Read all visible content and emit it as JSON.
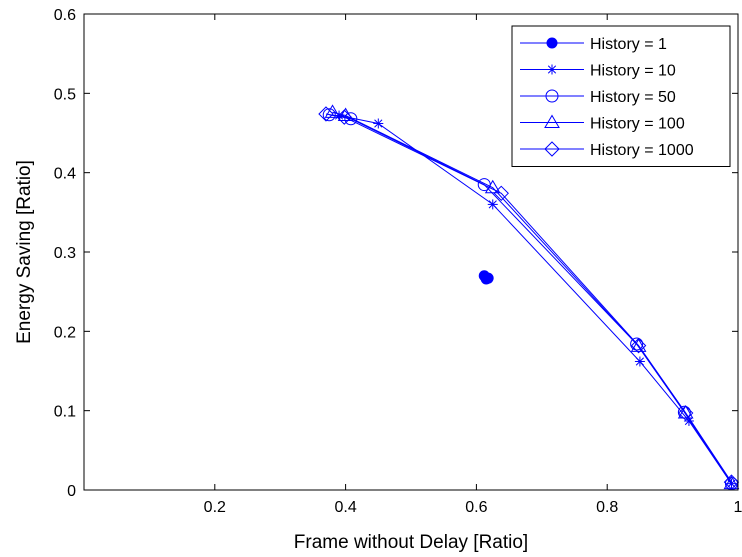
{
  "chart_data": {
    "type": "line",
    "title": "",
    "xlabel": "Frame without Delay [Ratio]",
    "ylabel": "Energy Saving [Ratio]",
    "xlim": [
      0,
      1
    ],
    "ylim": [
      0,
      0.6
    ],
    "xticks": [
      0.2,
      0.4,
      0.6,
      0.8,
      1
    ],
    "xtick_labels": [
      "0.2",
      "0.4",
      "0.6",
      "0.8",
      "1"
    ],
    "yticks": [
      0,
      0.1,
      0.2,
      0.3,
      0.4,
      0.5,
      0.6
    ],
    "ytick_labels": [
      "0",
      "0.1",
      "0.2",
      "0.3",
      "0.4",
      "0.5",
      "0.6"
    ],
    "grid": false,
    "legend_position": "top-right",
    "color": "#0000ff",
    "series": [
      {
        "name": "History = 1",
        "marker": "filled-circle",
        "x": [
          0.612,
          0.615,
          0.618
        ],
        "y": [
          0.27,
          0.266,
          0.267
        ]
      },
      {
        "name": "History = 10",
        "marker": "asterisk",
        "x": [
          0.39,
          0.45,
          0.625,
          0.85,
          0.925,
          0.99
        ],
        "y": [
          0.472,
          0.462,
          0.36,
          0.162,
          0.087,
          0.008
        ]
      },
      {
        "name": "History = 50",
        "marker": "circle",
        "x": [
          0.375,
          0.408,
          0.612,
          0.845,
          0.918,
          0.99
        ],
        "y": [
          0.473,
          0.468,
          0.385,
          0.184,
          0.098,
          0.008
        ]
      },
      {
        "name": "History = 100",
        "marker": "triangle",
        "x": [
          0.38,
          0.4,
          0.625,
          0.848,
          0.92,
          0.99
        ],
        "y": [
          0.476,
          0.472,
          0.381,
          0.181,
          0.097,
          0.008
        ]
      },
      {
        "name": "History = 1000",
        "marker": "diamond",
        "x": [
          0.37,
          0.398,
          0.638,
          0.848,
          0.92,
          0.99
        ],
        "y": [
          0.474,
          0.47,
          0.374,
          0.182,
          0.097,
          0.01
        ]
      }
    ]
  }
}
